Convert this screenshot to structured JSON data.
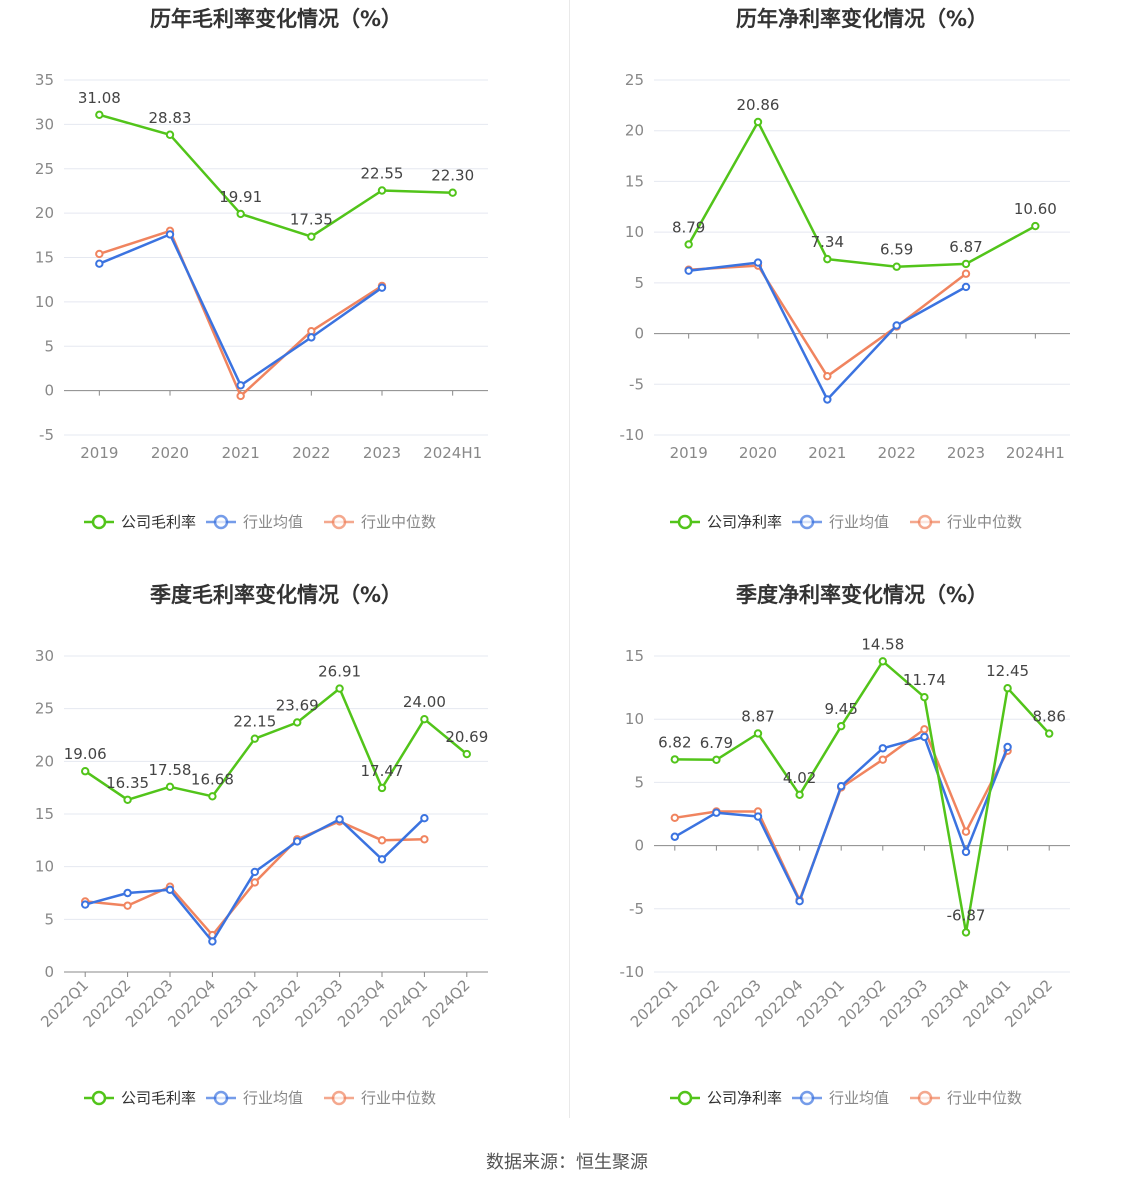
{
  "footer": {
    "source": "数据来源：恒生聚源"
  },
  "colors": {
    "company": "#52c41a",
    "avg": "#3b73e0",
    "median": "#f0845f",
    "axis": "#888888",
    "grid": "#e5e8f0"
  },
  "chart_data": [
    {
      "type": "line",
      "title": "历年毛利率变化情况（%）",
      "categories": [
        "2019",
        "2020",
        "2021",
        "2022",
        "2023",
        "2024H1"
      ],
      "ylim": [
        -5,
        35
      ],
      "yticks": [
        -5,
        0,
        5,
        10,
        15,
        20,
        25,
        30,
        35
      ],
      "x_label_rotate": false,
      "legend_position": "bottom",
      "grid": true,
      "series": [
        {
          "name": "公司毛利率",
          "key": "company",
          "labels": true,
          "values": [
            31.08,
            28.83,
            19.91,
            17.35,
            22.55,
            22.3
          ]
        },
        {
          "name": "行业均值",
          "key": "avg",
          "labels": false,
          "values": [
            14.3,
            17.6,
            0.6,
            6.0,
            11.6,
            null
          ]
        },
        {
          "name": "行业中位数",
          "key": "median",
          "labels": false,
          "values": [
            15.4,
            18.0,
            -0.6,
            6.7,
            11.8,
            null
          ]
        }
      ]
    },
    {
      "type": "line",
      "title": "历年净利率变化情况（%）",
      "categories": [
        "2019",
        "2020",
        "2021",
        "2022",
        "2023",
        "2024H1"
      ],
      "ylim": [
        -10,
        25
      ],
      "yticks": [
        -10,
        -5,
        0,
        5,
        10,
        15,
        20,
        25
      ],
      "x_label_rotate": false,
      "legend_position": "bottom",
      "grid": true,
      "series": [
        {
          "name": "公司净利率",
          "key": "company",
          "labels": true,
          "values": [
            8.79,
            20.86,
            7.34,
            6.59,
            6.87,
            10.6
          ]
        },
        {
          "name": "行业均值",
          "key": "avg",
          "labels": false,
          "values": [
            6.2,
            7.0,
            -6.5,
            0.8,
            4.6,
            null
          ]
        },
        {
          "name": "行业中位数",
          "key": "median",
          "labels": false,
          "values": [
            6.3,
            6.7,
            -4.2,
            0.7,
            5.9,
            null
          ]
        }
      ]
    },
    {
      "type": "line",
      "title": "季度毛利率变化情况（%）",
      "categories": [
        "2022Q1",
        "2022Q2",
        "2022Q3",
        "2022Q4",
        "2023Q1",
        "2023Q2",
        "2023Q3",
        "2023Q4",
        "2024Q1",
        "2024Q2"
      ],
      "ylim": [
        0,
        30
      ],
      "yticks": [
        0,
        5,
        10,
        15,
        20,
        25,
        30
      ],
      "x_label_rotate": true,
      "legend_position": "bottom",
      "grid": true,
      "series": [
        {
          "name": "公司毛利率",
          "key": "company",
          "labels": true,
          "values": [
            19.06,
            16.35,
            17.58,
            16.68,
            22.15,
            23.69,
            26.91,
            17.47,
            24.0,
            20.69
          ]
        },
        {
          "name": "行业均值",
          "key": "avg",
          "labels": false,
          "values": [
            6.4,
            7.5,
            7.8,
            2.9,
            9.5,
            12.4,
            14.5,
            10.7,
            14.6,
            null
          ]
        },
        {
          "name": "行业中位数",
          "key": "median",
          "labels": false,
          "values": [
            6.7,
            6.3,
            8.1,
            3.5,
            8.5,
            12.6,
            14.3,
            12.5,
            12.6,
            null
          ]
        }
      ]
    },
    {
      "type": "line",
      "title": "季度净利率变化情况（%）",
      "categories": [
        "2022Q1",
        "2022Q2",
        "2022Q3",
        "2022Q4",
        "2023Q1",
        "2023Q2",
        "2023Q3",
        "2023Q4",
        "2024Q1",
        "2024Q2"
      ],
      "ylim": [
        -10,
        15
      ],
      "yticks": [
        -10,
        -5,
        0,
        5,
        10,
        15
      ],
      "x_label_rotate": true,
      "legend_position": "bottom",
      "grid": true,
      "series": [
        {
          "name": "公司净利率",
          "key": "company",
          "labels": true,
          "values": [
            6.82,
            6.79,
            8.87,
            4.02,
            9.45,
            14.58,
            11.74,
            -6.87,
            12.45,
            8.86
          ]
        },
        {
          "name": "行业均值",
          "key": "avg",
          "labels": false,
          "values": [
            0.7,
            2.6,
            2.3,
            -4.4,
            4.7,
            7.7,
            8.6,
            -0.5,
            7.8,
            null
          ]
        },
        {
          "name": "行业中位数",
          "key": "median",
          "labels": false,
          "values": [
            2.2,
            2.7,
            2.7,
            -4.3,
            4.6,
            6.8,
            9.2,
            1.1,
            7.5,
            null
          ]
        }
      ]
    }
  ]
}
